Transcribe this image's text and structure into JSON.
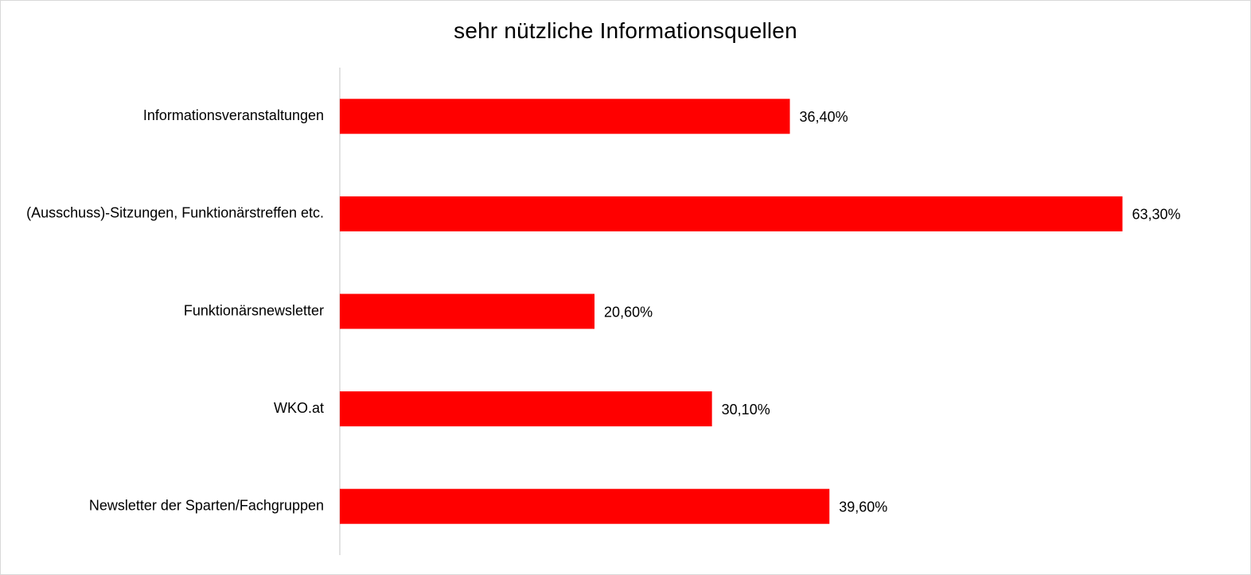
{
  "chart_data": {
    "type": "bar",
    "orientation": "horizontal",
    "title": "sehr nützliche Informationsquellen",
    "xlabel": "",
    "ylabel": "",
    "categories": [
      "Informationsveranstaltungen",
      "(Ausschuss)-Sitzungen, Funktionärstreffen etc.",
      "Funktionärsnewsletter",
      "WKO.at",
      "Newsletter der Sparten/Fachgruppen"
    ],
    "values": [
      36.4,
      63.3,
      20.6,
      30.1,
      39.6
    ],
    "data_labels": [
      "36,40%",
      "63,30%",
      "20,60%",
      "30,10%",
      "39,60%"
    ],
    "xlim": [
      0,
      71.7
    ],
    "grid": false,
    "legend": "none",
    "colors": {
      "bar": "#ff0000",
      "axis": "#d9d9d9"
    }
  }
}
